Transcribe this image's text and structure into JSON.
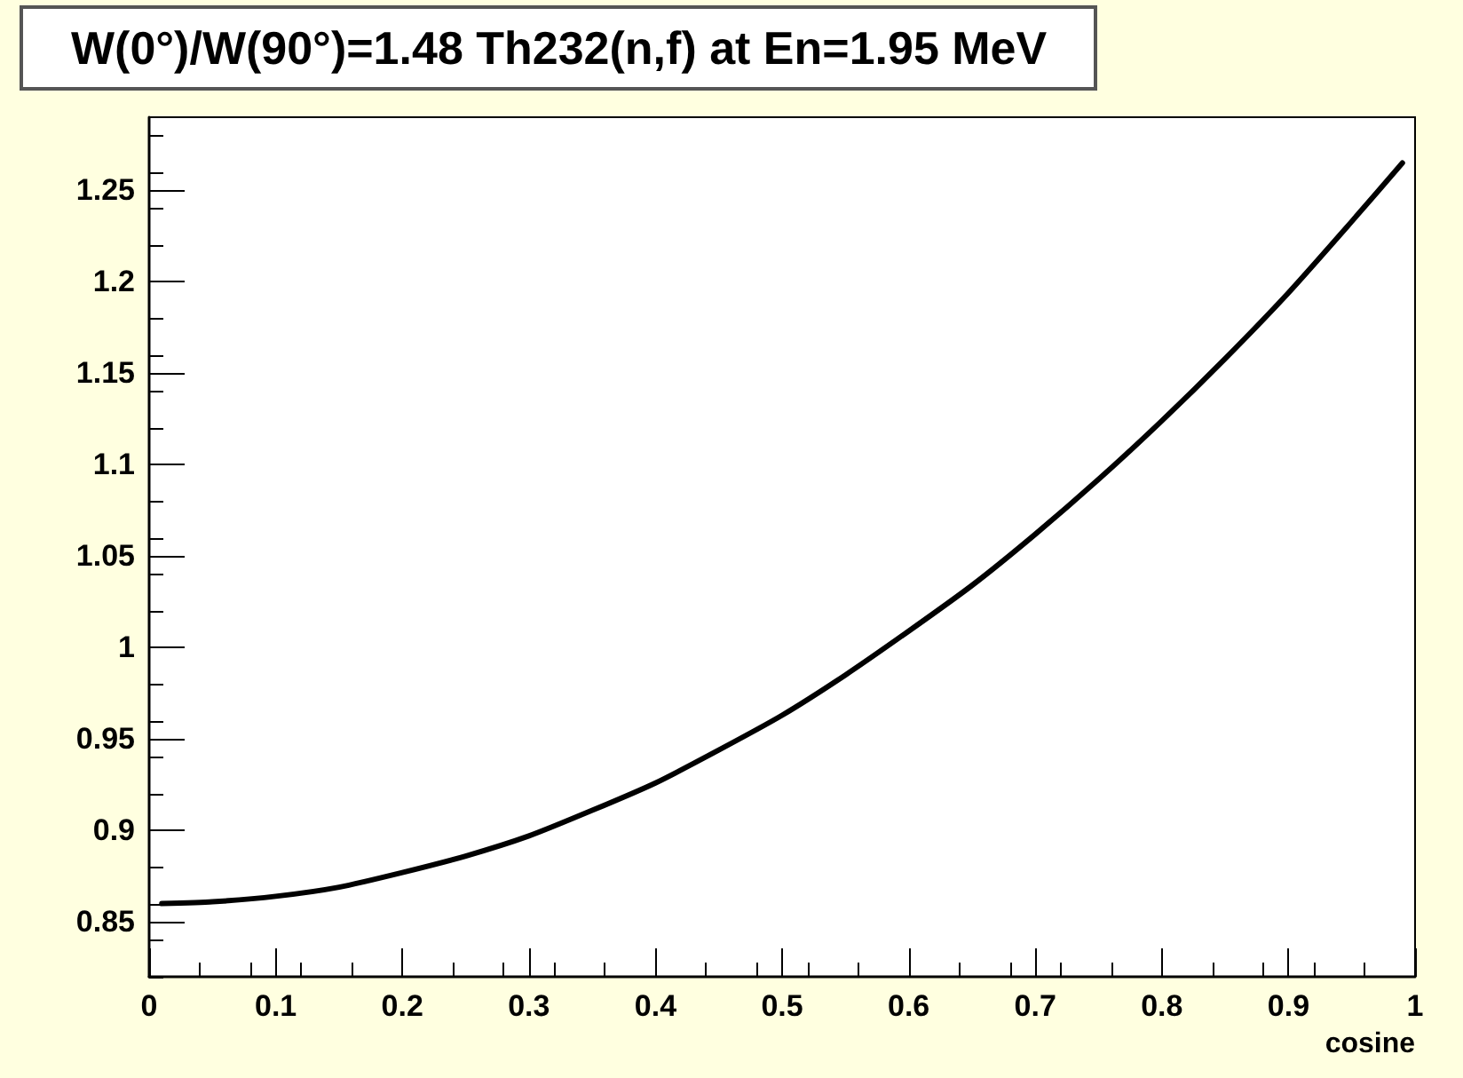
{
  "chart_data": {
    "type": "line",
    "title": "W(0°)/W(90°)=1.48 Th232(n,f) at En=1.95 MeV",
    "xlabel": "cosine",
    "x": [
      0.01,
      0.05,
      0.1,
      0.15,
      0.2,
      0.25,
      0.3,
      0.35,
      0.4,
      0.45,
      0.5,
      0.55,
      0.6,
      0.65,
      0.7,
      0.75,
      0.8,
      0.85,
      0.9,
      0.95,
      0.99
    ],
    "series": [
      {
        "color": "#000000",
        "values": [
          0.86,
          0.861,
          0.864,
          0.869,
          0.877,
          0.886,
          0.897,
          0.911,
          0.926,
          0.944,
          0.963,
          0.985,
          1.009,
          1.034,
          1.062,
          1.092,
          1.124,
          1.158,
          1.194,
          1.233,
          1.265
        ]
      }
    ],
    "xlim": [
      0,
      1
    ],
    "xticks": [
      0,
      0.1,
      0.2,
      0.3,
      0.4,
      0.5,
      0.6,
      0.7,
      0.8,
      0.9,
      1
    ],
    "ylim": [
      0.82,
      1.29
    ],
    "yticks": [
      0.85,
      0.9,
      0.95,
      1,
      1.05,
      1.1,
      1.15,
      1.2,
      1.25
    ],
    "grid": false,
    "marker": "none",
    "line_style": "solid"
  }
}
